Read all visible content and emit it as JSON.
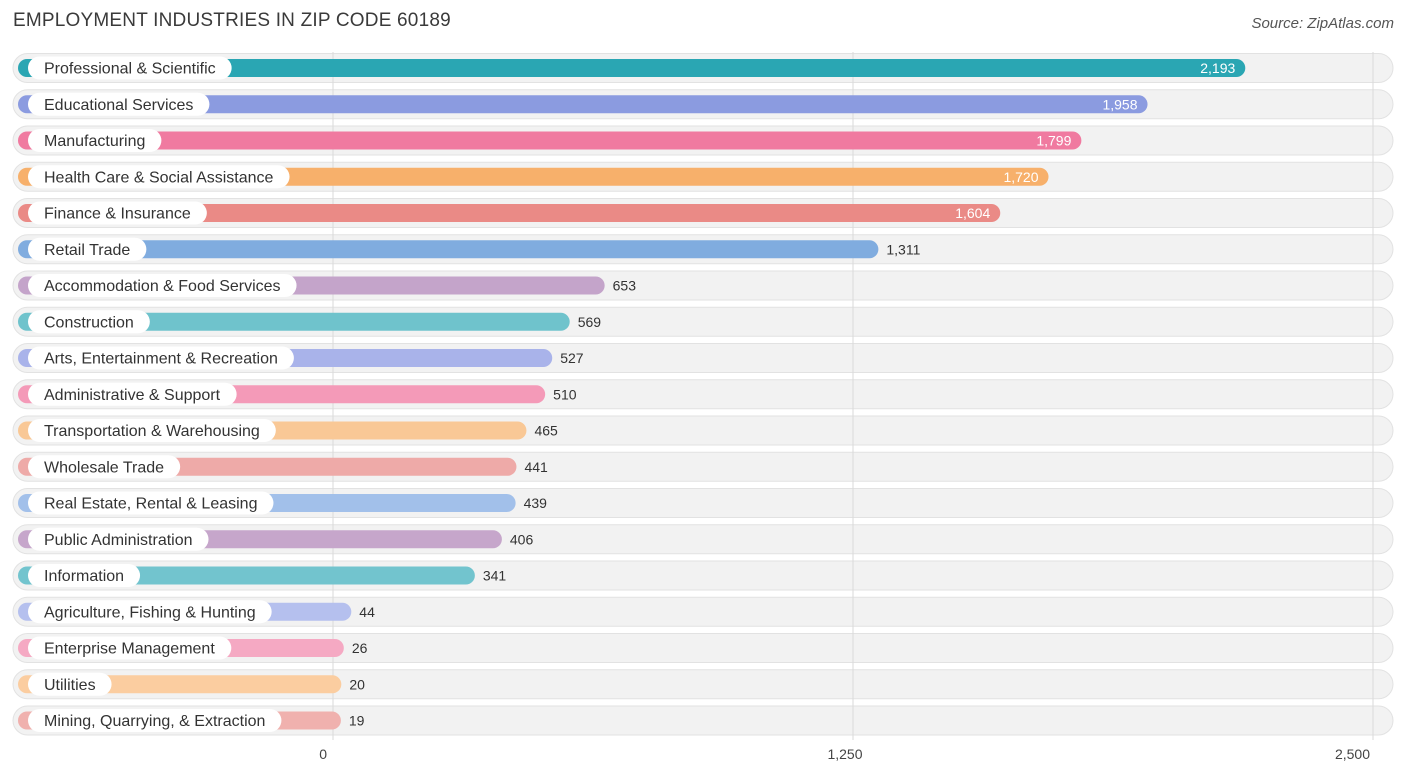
{
  "header": {
    "title": "EMPLOYMENT INDUSTRIES IN ZIP CODE 60189",
    "source": "Source: ZipAtlas.com"
  },
  "chart_data": {
    "type": "bar",
    "orientation": "horizontal",
    "title": "EMPLOYMENT INDUSTRIES IN ZIP CODE 60189",
    "categories": [
      "Professional & Scientific",
      "Educational Services",
      "Manufacturing",
      "Health Care & Social Assistance",
      "Finance & Insurance",
      "Retail Trade",
      "Accommodation & Food Services",
      "Construction",
      "Arts, Entertainment & Recreation",
      "Administrative & Support",
      "Transportation & Warehousing",
      "Wholesale Trade",
      "Real Estate, Rental & Leasing",
      "Public Administration",
      "Information",
      "Agriculture, Fishing & Hunting",
      "Enterprise Management",
      "Utilities",
      "Mining, Quarrying, & Extraction"
    ],
    "values": [
      2193,
      1958,
      1799,
      1720,
      1604,
      1311,
      653,
      569,
      527,
      510,
      465,
      441,
      439,
      406,
      341,
      44,
      26,
      20,
      19
    ],
    "value_labels": [
      "2,193",
      "1,958",
      "1,799",
      "1,720",
      "1,604",
      "1,311",
      "653",
      "569",
      "527",
      "510",
      "465",
      "441",
      "439",
      "406",
      "341",
      "44",
      "26",
      "20",
      "19"
    ],
    "colors": [
      "#2aa6b3",
      "#8b9be0",
      "#f07aa0",
      "#f7b06b",
      "#ea8a86",
      "#80acdf",
      "#c4a4ca",
      "#6fc3cc",
      "#a9b3ea",
      "#f49ab8",
      "#f9c896",
      "#eeaaa8",
      "#a2c0ea",
      "#c6a6cb",
      "#72c4ce",
      "#b5c0ee",
      "#f5a9c3",
      "#fbcda0",
      "#f0b1ae"
    ],
    "x_ticks": [
      0,
      1250,
      2500
    ],
    "x_tick_labels": [
      "0",
      "1,250",
      "2,500"
    ],
    "xlim": [
      0,
      2500
    ],
    "grid": true
  }
}
